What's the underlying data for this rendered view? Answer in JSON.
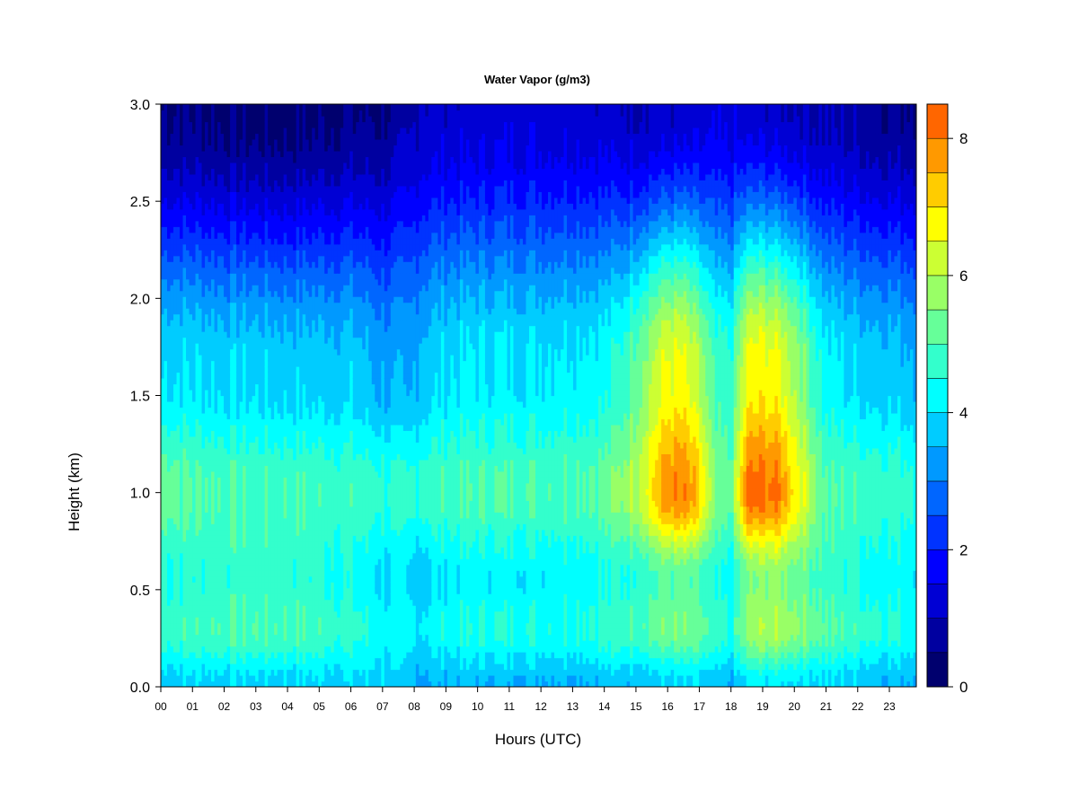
{
  "chart_data": {
    "type": "heatmap",
    "title": "Water Vapor (g/m3)",
    "xlabel": "Hours (UTC)",
    "ylabel": "Height (km)",
    "x_ticks": [
      "00",
      "01",
      "02",
      "03",
      "04",
      "05",
      "06",
      "07",
      "08",
      "09",
      "10",
      "11",
      "12",
      "13",
      "14",
      "15",
      "16",
      "17",
      "18",
      "19",
      "20",
      "21",
      "22",
      "23"
    ],
    "y_ticks": [
      "0.0",
      "0.5",
      "1.0",
      "1.5",
      "2.0",
      "2.5",
      "3.0"
    ],
    "xlim": [
      0,
      23.85
    ],
    "ylim": [
      0,
      3.0
    ],
    "colorbar": {
      "range": [
        0,
        8.5
      ],
      "step": 0.5,
      "tick_values": [
        0,
        2,
        4,
        6,
        8
      ],
      "tick_labels": [
        "0",
        "2",
        "4",
        "6",
        "8"
      ],
      "colors": [
        "#00006e",
        "#0000a0",
        "#0000d4",
        "#0000ff",
        "#0033ff",
        "#0066ff",
        "#0099ff",
        "#00ccff",
        "#00ffff",
        "#33ffcc",
        "#66ff99",
        "#99ff66",
        "#ccff33",
        "#ffff00",
        "#ffcc00",
        "#ff9900",
        "#ff6600",
        "#ff3300",
        "#ff0000",
        "#cc0000",
        "#990000",
        "#660000"
      ]
    },
    "field": {
      "hours": [
        0,
        1,
        2,
        3,
        4,
        5,
        6,
        7,
        7.8,
        8.2,
        9,
        10,
        11,
        12,
        13,
        14,
        14.5,
        15,
        15.5,
        16,
        16.5,
        17,
        17.5,
        18,
        18.5,
        19,
        19.5,
        20,
        21,
        22,
        23,
        23.85
      ],
      "surface_vapor": [
        3.8,
        3.9,
        3.9,
        3.9,
        3.9,
        3.9,
        3.9,
        3.9,
        3.5,
        3.5,
        3.6,
        3.6,
        3.6,
        3.6,
        3.6,
        3.7,
        3.7,
        3.7,
        3.8,
        3.8,
        3.8,
        3.8,
        3.5,
        3.5,
        4.0,
        4.1,
        4.1,
        4.1,
        3.9,
        3.8,
        3.6,
        3.6
      ],
      "lowlayer_vapor": [
        4.8,
        4.9,
        5.0,
        5.0,
        5.0,
        4.9,
        4.7,
        4.3,
        4.1,
        4.1,
        4.4,
        4.5,
        4.5,
        4.5,
        4.6,
        4.7,
        4.8,
        5.0,
        5.2,
        5.4,
        5.4,
        5.2,
        4.7,
        4.5,
        5.6,
        5.9,
        5.9,
        5.7,
        5.1,
        4.8,
        4.6,
        4.5
      ],
      "peak_vapor": [
        5.4,
        5.1,
        5.0,
        4.9,
        4.9,
        4.9,
        4.8,
        4.7,
        4.5,
        4.8,
        4.9,
        5.0,
        5.0,
        5.0,
        5.1,
        5.2,
        5.6,
        6.1,
        7.0,
        7.9,
        7.9,
        7.2,
        5.3,
        5.1,
        8.1,
        8.2,
        8.0,
        7.0,
        5.0,
        4.9,
        4.8,
        4.7
      ],
      "mid_vapor": [
        4.0,
        4.0,
        3.9,
        3.9,
        3.8,
        3.8,
        3.8,
        3.4,
        3.3,
        3.7,
        4.0,
        4.1,
        4.1,
        4.1,
        4.2,
        4.3,
        4.6,
        5.3,
        6.0,
        6.6,
        6.6,
        5.9,
        4.7,
        4.6,
        6.6,
        6.8,
        6.6,
        6.0,
        4.2,
        3.9,
        3.8,
        3.6
      ],
      "top_vapor": [
        0.5,
        0.5,
        0.4,
        0.3,
        0.3,
        0.4,
        0.5,
        0.5,
        0.8,
        1.1,
        1.2,
        1.2,
        1.3,
        1.3,
        1.3,
        1.2,
        1.1,
        1.1,
        1.1,
        1.1,
        1.1,
        1.2,
        1.3,
        1.3,
        1.2,
        1.2,
        1.1,
        1.1,
        0.9,
        0.8,
        0.6,
        0.6
      ]
    }
  }
}
